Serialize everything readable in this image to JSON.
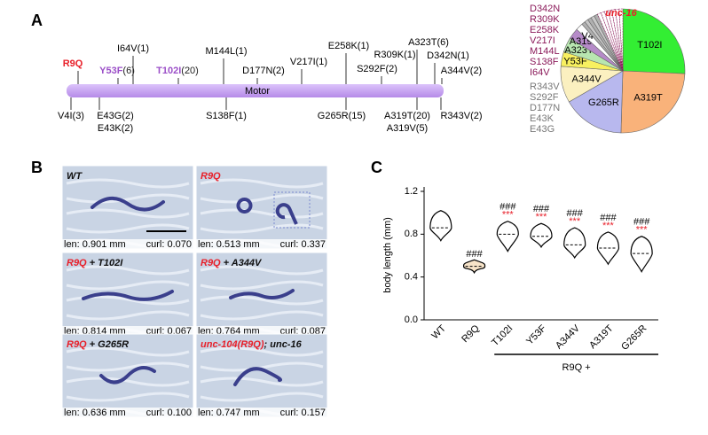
{
  "panel_a": {
    "label": "A",
    "domain_label": "Motor",
    "top": [
      {
        "label": "R9Q",
        "color": "#e8202a"
      },
      {
        "label": "Y53F",
        "count": "(6)",
        "color": "#9b4fc8"
      },
      {
        "label": "I64V(1)"
      },
      {
        "label": "T102I",
        "count": "(20)",
        "color": "#9b4fc8"
      },
      {
        "label": "M144L(1)"
      },
      {
        "label": "D177N(2)"
      },
      {
        "label": "V217I(1)"
      },
      {
        "label": "E258K(1)"
      },
      {
        "label": "S292F(2)"
      },
      {
        "label": "R309K(1)"
      },
      {
        "label": "A323T(6)"
      },
      {
        "label": "D342N(1)"
      },
      {
        "label": "A344V(2)"
      }
    ],
    "bottom": [
      {
        "label": "V4I(3)"
      },
      {
        "label": "E43G(2)"
      },
      {
        "label": "E43K(2)"
      },
      {
        "label": "S138F(1)"
      },
      {
        "label": "G265R(15)"
      },
      {
        "label": "A319T(20)"
      },
      {
        "label": "A319V(5)"
      },
      {
        "label": "R343V(2)"
      }
    ],
    "legend_magenta": [
      "D342N",
      "R309K",
      "E258K",
      "V217I",
      "M144L",
      "S138F",
      "I64V"
    ],
    "legend_gray": [
      "R343V",
      "S292F",
      "D177N",
      "E43K",
      "E43G"
    ]
  },
  "panel_b": {
    "label": "B",
    "tiles": [
      {
        "title_black": "WT",
        "len": "len: 0.901 mm",
        "curl": "curl: 0.070"
      },
      {
        "title_red": "R9Q",
        "len": "len: 0.513 mm",
        "curl": "curl: 0.337"
      },
      {
        "title_red": "R9Q",
        "title_black": " + T102I",
        "len": "len: 0.814 mm",
        "curl": "curl: 0.067"
      },
      {
        "title_red": "R9Q",
        "title_black": " + A344V",
        "len": "len: 0.764 mm",
        "curl": "curl: 0.087"
      },
      {
        "title_red": "R9Q",
        "title_black": " + G265R",
        "len": "len: 0.636 mm",
        "curl": "curl: 0.100"
      },
      {
        "title_red": "unc-104(R9Q)",
        "title_black": "; unc-16",
        "len": "len: 0.747 mm",
        "curl": "curl: 0.157"
      }
    ]
  },
  "panel_c": {
    "label": "C"
  },
  "chart_data": [
    {
      "type": "pie",
      "title": "unc-16",
      "categories": [
        "T102I",
        "A319T",
        "G265R",
        "A344V",
        "Y53F",
        "A323T",
        "A319V",
        "V4I",
        null,
        null,
        null,
        null,
        null,
        null,
        null,
        null,
        null,
        null,
        null,
        null
      ],
      "values": [
        27,
        26,
        17,
        10,
        4,
        4,
        3,
        2,
        1,
        1,
        1,
        1,
        1,
        1,
        1,
        1,
        1,
        1,
        1,
        1
      ],
      "colors": [
        "#33ee33",
        "#f9b27a",
        "#b8b8ee",
        "#fbf0c0",
        "#f8f060",
        "#b8e6b0",
        "#b58ac8",
        "#ffffff",
        "#b0b0b0",
        "#c8c8c8",
        "#b0b0b0",
        "#c8c8c8",
        "#b0b0b0",
        "#ffffff",
        "#ffffff",
        "#ffffff",
        "#ffffff",
        "#ffffff",
        "#ffffff",
        "#ffffff"
      ]
    },
    {
      "type": "violin",
      "ylabel": "body length (mm)",
      "group_label": "R9Q +",
      "categories": [
        "WT",
        "R9Q",
        "T102I",
        "Y53F",
        "A344V",
        "A319T",
        "G265R"
      ],
      "values": [
        0.86,
        0.5,
        0.8,
        0.78,
        0.7,
        0.67,
        0.62
      ],
      "min": [
        0.74,
        0.44,
        0.64,
        0.68,
        0.58,
        0.52,
        0.45
      ],
      "max": [
        1.02,
        0.56,
        0.92,
        0.9,
        0.86,
        0.82,
        0.78
      ],
      "sig_hash": [
        null,
        "###",
        "###",
        "###",
        "###",
        "###",
        "###"
      ],
      "sig_star": [
        null,
        null,
        "***",
        "***",
        "***",
        "***",
        "***"
      ],
      "ylim": [
        0,
        1.2
      ],
      "yticks": [
        {
          "value": 0,
          "label": "0.0"
        },
        0.4,
        0.8,
        1.2
      ]
    }
  ]
}
